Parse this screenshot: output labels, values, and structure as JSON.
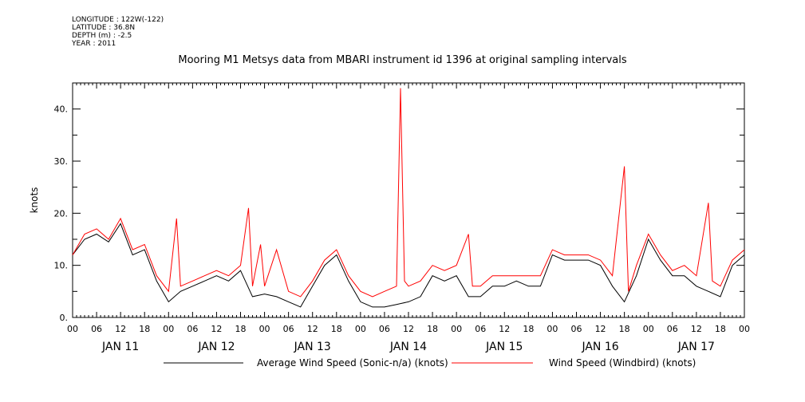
{
  "header": {
    "longitude": "LONGITUDE : 122W(-122)",
    "latitude": "LATITUDE : 36.8N",
    "depth": "DEPTH (m) : -2.5",
    "year": "YEAR : 2011"
  },
  "chart_data": {
    "type": "line",
    "title": "Mooring M1 Metsys data from MBARI instrument id 1396 at original sampling intervals",
    "ylabel": "knots",
    "xlabel": "",
    "ylim": [
      0,
      45
    ],
    "xlim_hours": [
      0,
      168
    ],
    "y_ticks": [
      0,
      10,
      20,
      30,
      40
    ],
    "y_tick_labels": [
      "0.",
      "10.",
      "20.",
      "30.",
      "40."
    ],
    "x_hour_tick_labels": [
      "00",
      "06",
      "12",
      "18",
      "00",
      "06",
      "12",
      "18",
      "00",
      "06",
      "12",
      "18",
      "00",
      "06",
      "12",
      "18",
      "00",
      "06",
      "12",
      "18",
      "00",
      "06",
      "12",
      "18",
      "00",
      "06",
      "12",
      "18",
      "00"
    ],
    "day_labels": [
      "JAN 11",
      "JAN 12",
      "JAN 13",
      "JAN 14",
      "JAN 15",
      "JAN 16",
      "JAN 17"
    ],
    "grid": false,
    "legend_position": "bottom",
    "series": [
      {
        "name": "Average Wind Speed (Sonic-n/a) (knots)",
        "color": "#000000",
        "points": [
          [
            0,
            12
          ],
          [
            3,
            15
          ],
          [
            6,
            16
          ],
          [
            9,
            14.5
          ],
          [
            12,
            18
          ],
          [
            15,
            12
          ],
          [
            18,
            13
          ],
          [
            21,
            7
          ],
          [
            24,
            3
          ],
          [
            27,
            5
          ],
          [
            30,
            6
          ],
          [
            33,
            7
          ],
          [
            36,
            8
          ],
          [
            39,
            7
          ],
          [
            42,
            9
          ],
          [
            45,
            4
          ],
          [
            48,
            4.5
          ],
          [
            51,
            4
          ],
          [
            54,
            3
          ],
          [
            57,
            2
          ],
          [
            60,
            6
          ],
          [
            63,
            10
          ],
          [
            66,
            12
          ],
          [
            69,
            7
          ],
          [
            72,
            3
          ],
          [
            75,
            2
          ],
          [
            78,
            2
          ],
          [
            81,
            2.5
          ],
          [
            84,
            3
          ],
          [
            87,
            4
          ],
          [
            90,
            8
          ],
          [
            93,
            7
          ],
          [
            96,
            8
          ],
          [
            99,
            4
          ],
          [
            102,
            4
          ],
          [
            105,
            6
          ],
          [
            108,
            6
          ],
          [
            111,
            7
          ],
          [
            114,
            6
          ],
          [
            117,
            6
          ],
          [
            120,
            12
          ],
          [
            123,
            11
          ],
          [
            126,
            11
          ],
          [
            129,
            11
          ],
          [
            132,
            10
          ],
          [
            135,
            6
          ],
          [
            138,
            3
          ],
          [
            141,
            8
          ],
          [
            144,
            15
          ],
          [
            147,
            11
          ],
          [
            150,
            8
          ],
          [
            153,
            8
          ],
          [
            156,
            6
          ],
          [
            159,
            5
          ],
          [
            162,
            4
          ],
          [
            165,
            10
          ],
          [
            168,
            12
          ]
        ]
      },
      {
        "name": "Wind Speed (Windbird) (knots)",
        "color": "#ff0000",
        "points": [
          [
            0,
            12
          ],
          [
            3,
            16
          ],
          [
            6,
            17
          ],
          [
            9,
            15
          ],
          [
            12,
            19
          ],
          [
            15,
            13
          ],
          [
            18,
            14
          ],
          [
            21,
            8
          ],
          [
            24,
            5
          ],
          [
            26,
            19
          ],
          [
            27,
            6
          ],
          [
            30,
            7
          ],
          [
            33,
            8
          ],
          [
            36,
            9
          ],
          [
            39,
            8
          ],
          [
            42,
            10
          ],
          [
            44,
            21
          ],
          [
            45,
            6
          ],
          [
            47,
            14
          ],
          [
            48,
            6
          ],
          [
            51,
            13
          ],
          [
            54,
            5
          ],
          [
            57,
            4
          ],
          [
            60,
            7
          ],
          [
            63,
            11
          ],
          [
            66,
            13
          ],
          [
            69,
            8
          ],
          [
            72,
            5
          ],
          [
            75,
            4
          ],
          [
            78,
            5
          ],
          [
            81,
            6
          ],
          [
            82,
            44
          ],
          [
            83,
            7
          ],
          [
            84,
            6
          ],
          [
            87,
            7
          ],
          [
            90,
            10
          ],
          [
            93,
            9
          ],
          [
            96,
            10
          ],
          [
            99,
            16
          ],
          [
            100,
            6
          ],
          [
            102,
            6
          ],
          [
            105,
            8
          ],
          [
            108,
            8
          ],
          [
            111,
            8
          ],
          [
            114,
            8
          ],
          [
            117,
            8
          ],
          [
            120,
            13
          ],
          [
            123,
            12
          ],
          [
            126,
            12
          ],
          [
            129,
            12
          ],
          [
            132,
            11
          ],
          [
            135,
            8
          ],
          [
            138,
            29
          ],
          [
            139,
            5
          ],
          [
            141,
            10
          ],
          [
            144,
            16
          ],
          [
            147,
            12
          ],
          [
            150,
            9
          ],
          [
            153,
            10
          ],
          [
            156,
            8
          ],
          [
            159,
            22
          ],
          [
            160,
            7
          ],
          [
            162,
            6
          ],
          [
            165,
            11
          ],
          [
            168,
            13
          ]
        ]
      }
    ]
  }
}
